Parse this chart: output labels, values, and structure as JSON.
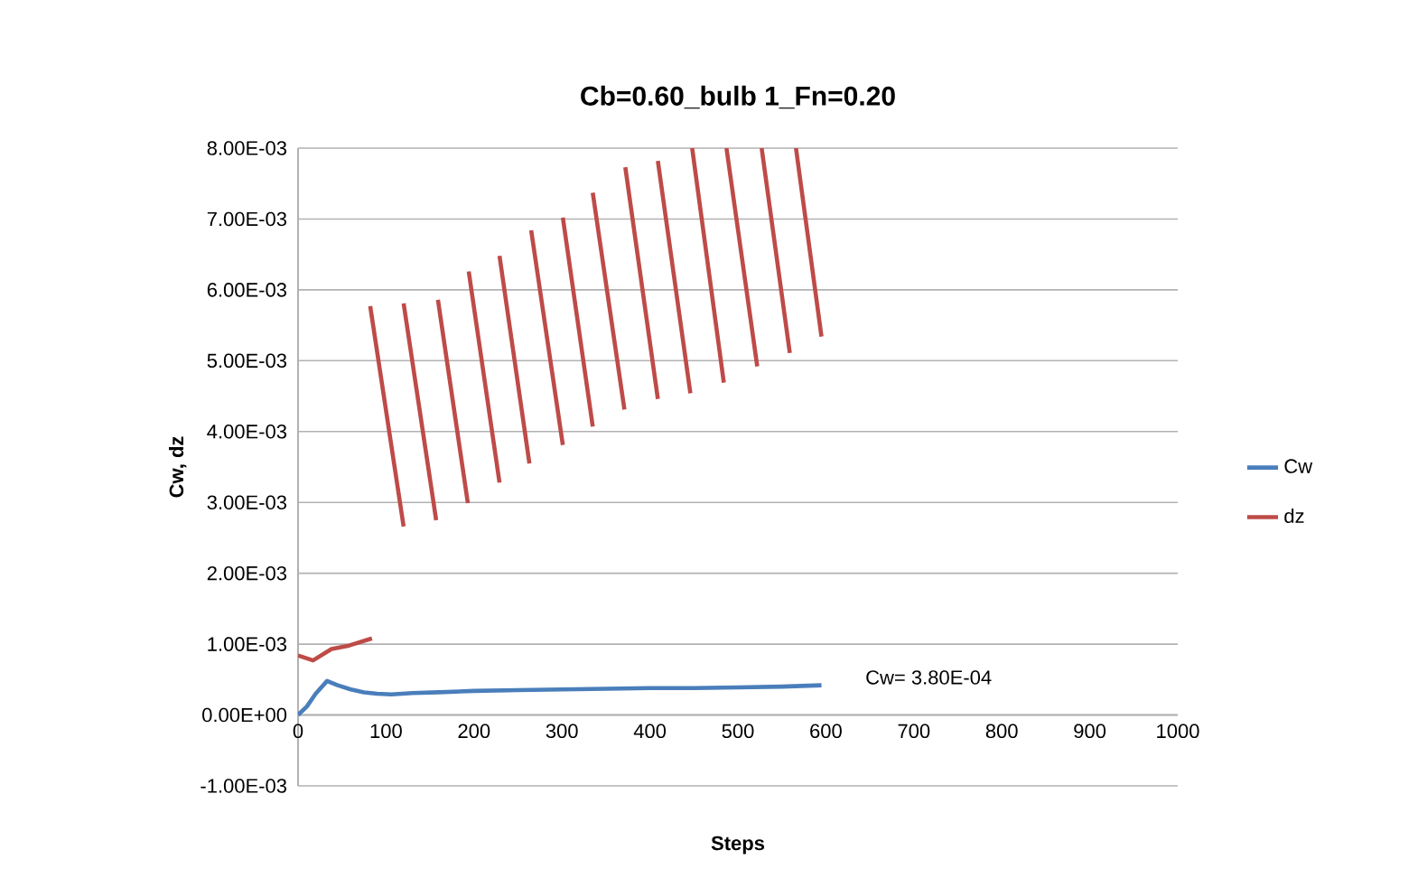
{
  "chart_data": {
    "type": "line",
    "title": "Cb=0.60_bulb 1_Fn=0.20",
    "xlabel": "Steps",
    "ylabel": "Cw, dz",
    "series": [
      {
        "name": "Cw",
        "color": "#4a7ebb",
        "x": [
          0,
          10,
          20,
          33,
          45,
          60,
          75,
          90,
          106,
          130,
          160,
          200,
          250,
          300,
          350,
          400,
          450,
          500,
          550,
          595
        ],
        "values": [
          0,
          0.00012,
          0.0003,
          0.00048,
          0.00042,
          0.00036,
          0.00032,
          0.0003,
          0.00029,
          0.00031,
          0.00032,
          0.00034,
          0.00035,
          0.00036,
          0.00037,
          0.00038,
          0.00038,
          0.00039,
          0.0004,
          0.00042
        ]
      },
      {
        "name": "dz",
        "color": "#be4b48",
        "x": [
          0,
          17,
          38,
          58,
          84,
          null,
          82,
          120,
          null,
          120,
          157,
          null,
          159,
          193,
          null,
          194,
          229,
          null,
          229,
          263,
          null,
          265,
          301,
          null,
          301,
          335,
          null,
          335,
          371,
          null,
          372,
          409,
          null,
          409,
          446,
          null,
          448,
          484,
          null,
          487,
          522,
          null,
          527,
          559,
          null,
          566,
          595
        ],
        "values": [
          0.00084,
          0.00077,
          0.00093,
          0.00098,
          0.00108,
          null,
          0.00577,
          0.00266,
          null,
          0.00581,
          0.00275,
          null,
          0.00586,
          0.00299,
          null,
          0.00626,
          0.00328,
          null,
          0.00648,
          0.00355,
          null,
          0.00684,
          0.00381,
          null,
          0.00702,
          0.00407,
          null,
          0.00737,
          0.00431,
          null,
          0.00773,
          0.00446,
          null,
          0.00782,
          0.00454,
          null,
          0.008,
          0.00469,
          null,
          0.008,
          0.00492,
          null,
          0.008,
          0.00511,
          null,
          0.008,
          0.00534
        ]
      }
    ],
    "xlim": [
      0,
      1000
    ],
    "xticks": [
      0,
      100,
      200,
      300,
      400,
      500,
      600,
      700,
      800,
      900,
      1000
    ],
    "ylim": [
      -0.001,
      0.008
    ],
    "yticks": [
      {
        "value": -0.001,
        "label": "-1.00E-03"
      },
      {
        "value": 0,
        "label": "0.00E+00"
      },
      {
        "value": 0.001,
        "label": "1.00E-03"
      },
      {
        "value": 0.002,
        "label": "2.00E-03"
      },
      {
        "value": 0.003,
        "label": "3.00E-03"
      },
      {
        "value": 0.004,
        "label": "4.00E-03"
      },
      {
        "value": 0.005,
        "label": "5.00E-03"
      },
      {
        "value": 0.006,
        "label": "6.00E-03"
      },
      {
        "value": 0.007,
        "label": "7.00E-03"
      },
      {
        "value": 0.008,
        "label": "8.00E-03"
      }
    ],
    "grid": "y",
    "legend": "right",
    "marker": "none",
    "line_style": "solid",
    "annotations": [
      "Cw= 3.80E-04"
    ]
  }
}
